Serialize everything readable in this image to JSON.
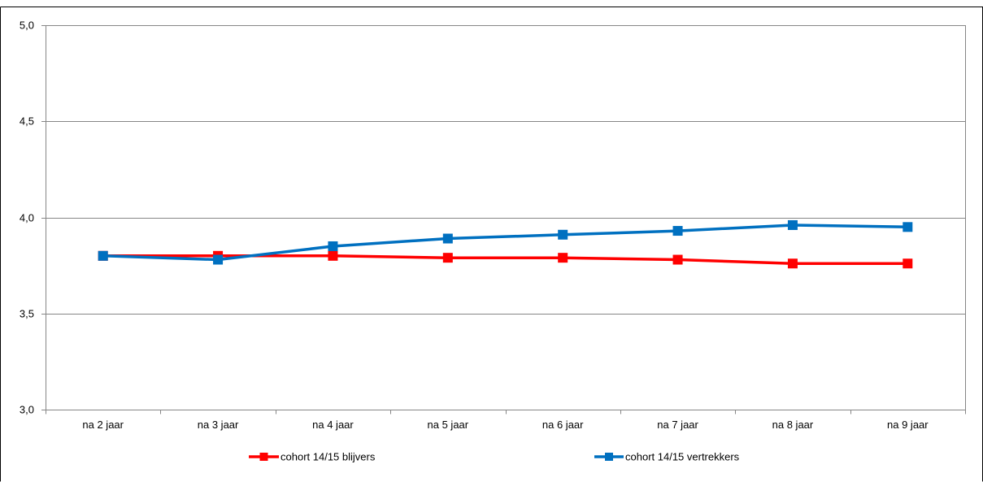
{
  "chart_data": {
    "type": "line",
    "title": "",
    "xlabel": "",
    "ylabel": "",
    "categories": [
      "na 2 jaar",
      "na 3 jaar",
      "na 4 jaar",
      "na 5 jaar",
      "na 6 jaar",
      "na 7 jaar",
      "na 8 jaar",
      "na 9 jaar"
    ],
    "ylim": [
      3.0,
      5.0
    ],
    "y_ticks": [
      {
        "value": 3.0,
        "label": "3,0"
      },
      {
        "value": 3.5,
        "label": "3,5"
      },
      {
        "value": 4.0,
        "label": "4,0"
      },
      {
        "value": 4.5,
        "label": "4,5"
      },
      {
        "value": 5.0,
        "label": "5,0"
      }
    ],
    "grid": true,
    "legend_position": "bottom",
    "series": [
      {
        "name": "cohort 14/15 blijvers",
        "color": "#ff0000",
        "marker": "square",
        "values": [
          3.8,
          3.8,
          3.8,
          3.79,
          3.79,
          3.78,
          3.76,
          3.76
        ]
      },
      {
        "name": "cohort 14/15 vertrekkers",
        "color": "#0070c0",
        "marker": "square",
        "values": [
          3.8,
          3.78,
          3.85,
          3.89,
          3.91,
          3.93,
          3.96,
          3.95
        ]
      }
    ]
  }
}
